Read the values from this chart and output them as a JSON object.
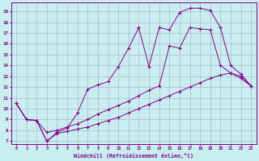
{
  "xlabel": "Windchill (Refroidissement éolien,°C)",
  "bg_color": "#c8eef0",
  "grid_color": "#aaaacc",
  "line_color": "#880088",
  "xlim": [
    -0.5,
    23.5
  ],
  "ylim": [
    6.7,
    19.8
  ],
  "xticks": [
    0,
    1,
    2,
    3,
    4,
    5,
    6,
    7,
    8,
    9,
    10,
    11,
    12,
    13,
    14,
    15,
    16,
    17,
    18,
    19,
    20,
    21,
    22,
    23
  ],
  "yticks": [
    7,
    8,
    9,
    10,
    11,
    12,
    13,
    14,
    15,
    16,
    17,
    18,
    19
  ],
  "curve1_x": [
    0,
    1,
    2,
    3,
    4,
    5,
    6,
    7,
    8,
    9,
    10,
    11,
    12,
    13,
    14,
    15,
    16,
    17,
    18,
    19,
    20,
    21,
    22,
    23
  ],
  "curve1_y": [
    10.5,
    9.0,
    8.9,
    7.0,
    7.8,
    8.2,
    9.6,
    11.8,
    12.2,
    12.5,
    13.9,
    15.6,
    17.5,
    13.9,
    17.5,
    17.3,
    18.9,
    19.3,
    19.3,
    19.1,
    17.5,
    14.0,
    13.2,
    12.1
  ],
  "curve2_x": [
    0,
    1,
    2,
    3,
    4,
    5,
    6,
    7,
    8,
    9,
    10,
    11,
    12,
    13,
    14,
    15,
    16,
    17,
    18,
    19,
    20,
    21,
    22,
    23
  ],
  "curve2_y": [
    10.5,
    9.0,
    8.9,
    7.8,
    8.0,
    8.3,
    8.6,
    9.0,
    9.5,
    9.9,
    10.3,
    10.7,
    11.2,
    11.7,
    12.1,
    15.8,
    15.6,
    17.5,
    17.4,
    17.3,
    14.0,
    13.3,
    13.0,
    12.1
  ],
  "curve3_x": [
    0,
    1,
    2,
    3,
    4,
    5,
    6,
    7,
    8,
    9,
    10,
    11,
    12,
    13,
    14,
    15,
    16,
    17,
    18,
    19,
    20,
    21,
    22,
    23
  ],
  "curve3_y": [
    10.5,
    9.0,
    8.9,
    7.0,
    7.7,
    7.9,
    8.1,
    8.3,
    8.6,
    8.9,
    9.2,
    9.6,
    10.0,
    10.4,
    10.8,
    11.2,
    11.6,
    12.0,
    12.4,
    12.8,
    13.1,
    13.3,
    12.8,
    12.1
  ]
}
